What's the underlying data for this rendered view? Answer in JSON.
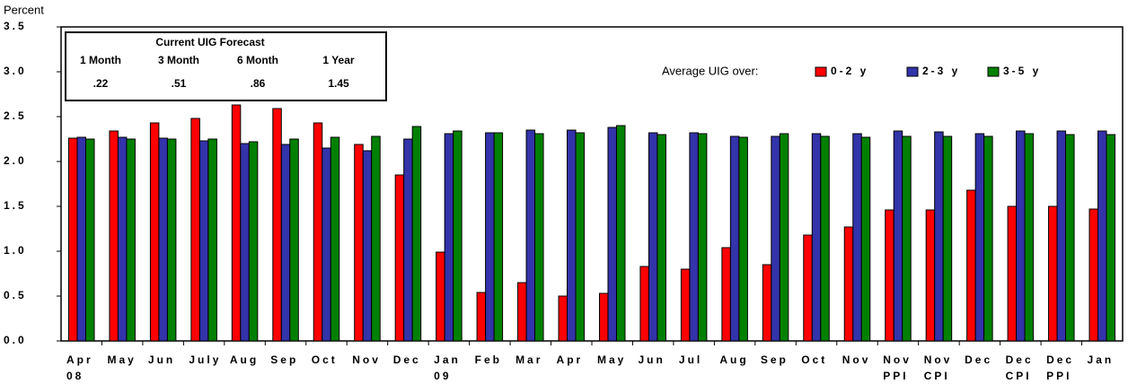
{
  "chart_data": {
    "type": "bar",
    "y_label": "Percent",
    "categories": [
      [
        "Apr",
        "08"
      ],
      [
        "May"
      ],
      [
        "Jun"
      ],
      [
        "July"
      ],
      [
        "Aug"
      ],
      [
        "Sep"
      ],
      [
        "Oct"
      ],
      [
        "Nov"
      ],
      [
        "Dec"
      ],
      [
        "Jan",
        "09"
      ],
      [
        "Feb"
      ],
      [
        "Mar"
      ],
      [
        "Apr"
      ],
      [
        "May"
      ],
      [
        "Jun"
      ],
      [
        "Jul"
      ],
      [
        "Aug"
      ],
      [
        "Sep"
      ],
      [
        "Oct"
      ],
      [
        "Nov"
      ],
      [
        "Nov",
        "PPI"
      ],
      [
        "Nov",
        "CPI"
      ],
      [
        "Dec"
      ],
      [
        "Dec",
        "CPI"
      ],
      [
        "Dec",
        "PPI"
      ],
      [
        "Jan"
      ]
    ],
    "series": [
      {
        "name": "0-2 y",
        "color": "#ff0000",
        "values": [
          2.26,
          2.34,
          2.43,
          2.48,
          2.63,
          2.59,
          2.43,
          2.19,
          1.85,
          0.99,
          0.54,
          0.65,
          0.5,
          0.53,
          0.83,
          0.8,
          1.04,
          0.85,
          1.18,
          1.27,
          1.46,
          1.46,
          1.68,
          1.5,
          1.5,
          1.47
        ]
      },
      {
        "name": "2-3 y",
        "color": "#3333aa",
        "values": [
          2.27,
          2.27,
          2.26,
          2.23,
          2.2,
          2.19,
          2.15,
          2.12,
          2.25,
          2.31,
          2.32,
          2.35,
          2.35,
          2.38,
          2.32,
          2.32,
          2.28,
          2.28,
          2.31,
          2.31,
          2.34,
          2.33,
          2.31,
          2.34,
          2.34,
          2.34
        ]
      },
      {
        "name": "3-5 y",
        "color": "#008000",
        "values": [
          2.25,
          2.25,
          2.25,
          2.25,
          2.22,
          2.25,
          2.27,
          2.28,
          2.39,
          2.34,
          2.32,
          2.31,
          2.32,
          2.4,
          2.3,
          2.31,
          2.27,
          2.31,
          2.28,
          2.27,
          2.28,
          2.28,
          2.28,
          2.31,
          2.3,
          2.3
        ]
      }
    ],
    "legend_title": "Average UIG over:",
    "ylim": [
      0,
      3.5
    ],
    "yticks": [
      {
        "value": 0,
        "label": "0.0"
      },
      0.5,
      {
        "value": 1,
        "label": "1.0"
      },
      1.5,
      {
        "value": 2,
        "label": "2.0"
      },
      2.5,
      {
        "value": 3,
        "label": "3.0"
      },
      3.5
    ],
    "forecast_table": {
      "title": "Current UIG Forecast",
      "headers": [
        "1 Month",
        "3 Month",
        "6 Month",
        "1 Year"
      ],
      "values": [
        ".22",
        ".51",
        ".86",
        "1.45"
      ]
    }
  }
}
